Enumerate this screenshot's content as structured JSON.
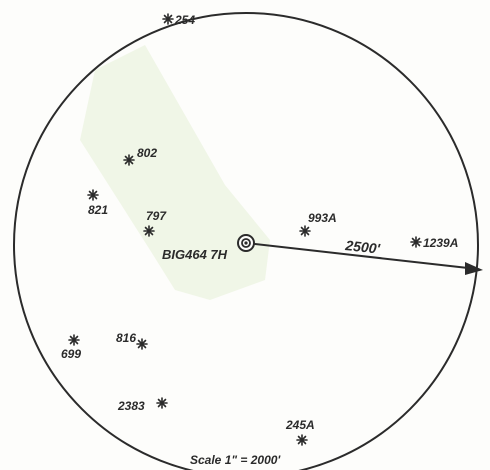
{
  "center_label": "BIG464 7H",
  "radius_label": "2500'",
  "scale_label": "Scale 1\" = 2000'",
  "colors": {
    "ink": "#2b2b2b",
    "highlight": "#eef5e4",
    "paper": "#fdfdfb"
  },
  "wells": [
    {
      "id": "254"
    },
    {
      "id": "802"
    },
    {
      "id": "821"
    },
    {
      "id": "797"
    },
    {
      "id": "993A"
    },
    {
      "id": "1239A"
    },
    {
      "id": "816"
    },
    {
      "id": "699"
    },
    {
      "id": "2383"
    },
    {
      "id": "245A"
    }
  ]
}
